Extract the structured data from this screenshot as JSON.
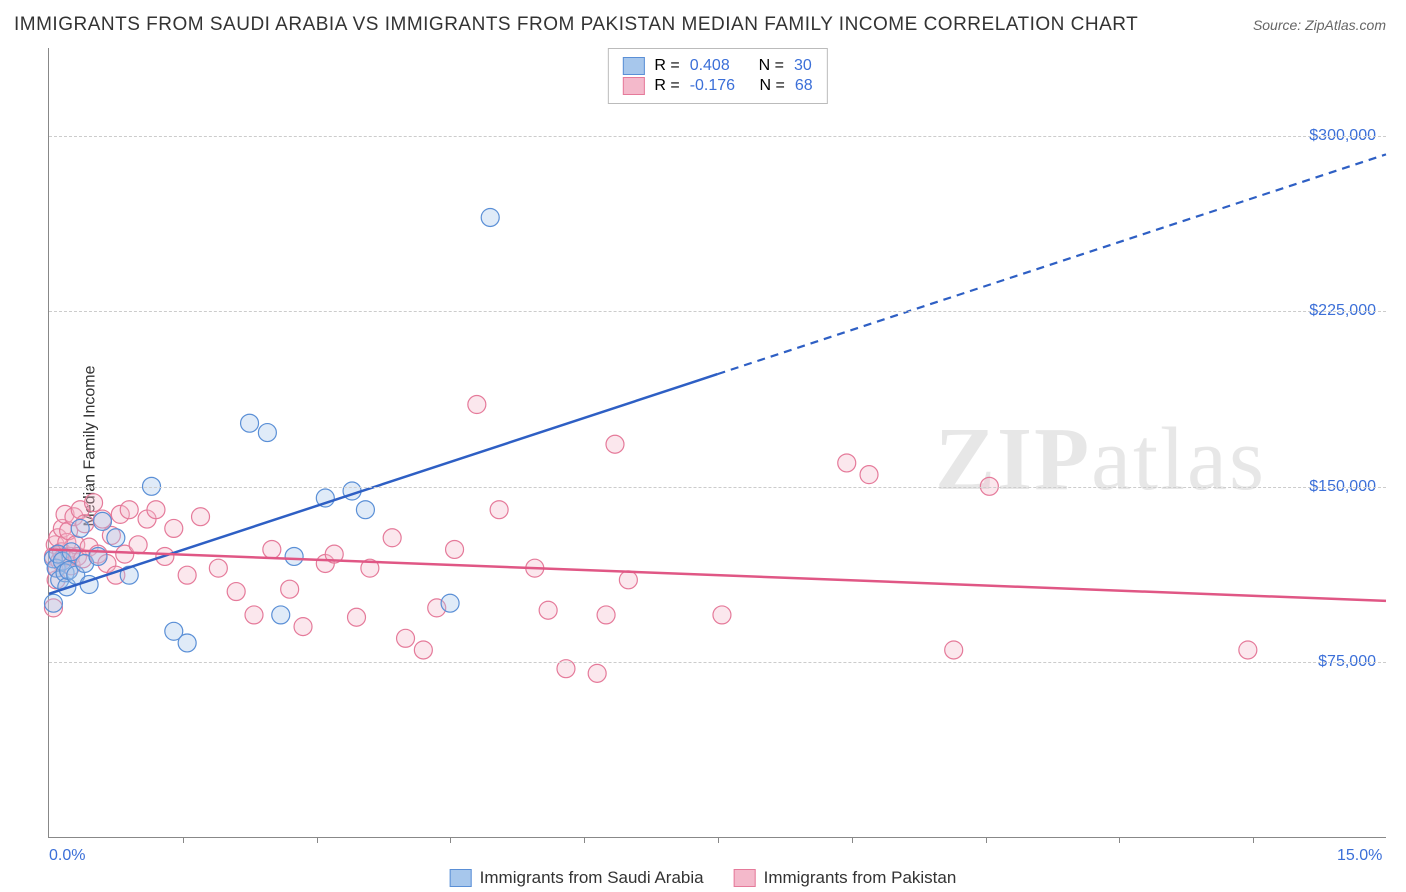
{
  "title": "IMMIGRANTS FROM SAUDI ARABIA VS IMMIGRANTS FROM PAKISTAN MEDIAN FAMILY INCOME CORRELATION CHART",
  "source": "Source: ZipAtlas.com",
  "y_axis_label": "Median Family Income",
  "watermark_bold": "ZIP",
  "watermark_light": "atlas",
  "chart": {
    "type": "scatter-with-regression",
    "background_color": "#ffffff",
    "grid_color": "#cccccc",
    "axis_color": "#888888",
    "tick_label_color": "#3b6fd8",
    "text_color": "#333333",
    "xlim": [
      0.0,
      15.0
    ],
    "ylim": [
      0,
      337500
    ],
    "x_ticks_minor": [
      1.5,
      3.0,
      4.5,
      6.0,
      7.5,
      9.0,
      10.5,
      12.0,
      13.5
    ],
    "x_ticks_label": [
      {
        "v": 0.0,
        "label": "0.0%"
      },
      {
        "v": 15.0,
        "label": "15.0%"
      }
    ],
    "y_ticks": [
      {
        "v": 75000,
        "label": "$75,000"
      },
      {
        "v": 150000,
        "label": "$150,000"
      },
      {
        "v": 225000,
        "label": "$225,000"
      },
      {
        "v": 300000,
        "label": "$300,000"
      }
    ],
    "series": [
      {
        "id": "saudi",
        "label": "Immigrants from Saudi Arabia",
        "marker_stroke": "#5a8fd6",
        "marker_fill": "#a7c7ec",
        "marker_radius": 9,
        "R": "0.408",
        "N": "30",
        "trend": {
          "x1": 0.0,
          "y1": 104000,
          "x2": 7.5,
          "y2": 198000,
          "extend_x2": 15.0,
          "extend_y2": 292000,
          "color": "#2e5fc4"
        },
        "points": [
          [
            0.05,
            119000
          ],
          [
            0.08,
            115000
          ],
          [
            0.1,
            121000
          ],
          [
            0.12,
            110000
          ],
          [
            0.15,
            118000
          ],
          [
            0.18,
            113000
          ],
          [
            0.2,
            107000
          ],
          [
            0.22,
            114000
          ],
          [
            0.25,
            122000
          ],
          [
            0.3,
            112000
          ],
          [
            0.35,
            132000
          ],
          [
            0.4,
            117000
          ],
          [
            0.45,
            108000
          ],
          [
            0.55,
            120000
          ],
          [
            0.6,
            135000
          ],
          [
            0.75,
            128000
          ],
          [
            0.9,
            112000
          ],
          [
            1.15,
            150000
          ],
          [
            1.4,
            88000
          ],
          [
            1.55,
            83000
          ],
          [
            2.25,
            177000
          ],
          [
            2.45,
            173000
          ],
          [
            2.6,
            95000
          ],
          [
            2.75,
            120000
          ],
          [
            3.1,
            145000
          ],
          [
            3.4,
            148000
          ],
          [
            3.55,
            140000
          ],
          [
            4.5,
            100000
          ],
          [
            4.95,
            265000
          ],
          [
            0.05,
            100000
          ]
        ]
      },
      {
        "id": "pakistan",
        "label": "Immigrants from Pakistan",
        "marker_stroke": "#e57a9a",
        "marker_fill": "#f4b9cb",
        "marker_radius": 9,
        "R": "-0.176",
        "N": "68",
        "trend": {
          "x1": 0.0,
          "y1": 123000,
          "x2": 15.0,
          "y2": 101000,
          "color": "#e05785"
        },
        "points": [
          [
            0.05,
            120000
          ],
          [
            0.05,
            98000
          ],
          [
            0.07,
            125000
          ],
          [
            0.08,
            110000
          ],
          [
            0.09,
            115000
          ],
          [
            0.1,
            128000
          ],
          [
            0.12,
            118000
          ],
          [
            0.14,
            122000
          ],
          [
            0.15,
            132000
          ],
          [
            0.17,
            120000
          ],
          [
            0.18,
            138000
          ],
          [
            0.2,
            126000
          ],
          [
            0.22,
            131000
          ],
          [
            0.24,
            120000
          ],
          [
            0.25,
            116000
          ],
          [
            0.28,
            137000
          ],
          [
            0.3,
            125000
          ],
          [
            0.32,
            120000
          ],
          [
            0.35,
            140000
          ],
          [
            0.38,
            119000
          ],
          [
            0.4,
            134000
          ],
          [
            0.45,
            124000
          ],
          [
            0.5,
            143000
          ],
          [
            0.55,
            121000
          ],
          [
            0.6,
            136000
          ],
          [
            0.65,
            117000
          ],
          [
            0.7,
            129000
          ],
          [
            0.75,
            112000
          ],
          [
            0.8,
            138000
          ],
          [
            0.85,
            121000
          ],
          [
            0.9,
            140000
          ],
          [
            1.0,
            125000
          ],
          [
            1.1,
            136000
          ],
          [
            1.2,
            140000
          ],
          [
            1.3,
            120000
          ],
          [
            1.4,
            132000
          ],
          [
            1.55,
            112000
          ],
          [
            1.7,
            137000
          ],
          [
            1.9,
            115000
          ],
          [
            2.1,
            105000
          ],
          [
            2.3,
            95000
          ],
          [
            2.5,
            123000
          ],
          [
            2.7,
            106000
          ],
          [
            2.85,
            90000
          ],
          [
            3.1,
            117000
          ],
          [
            3.2,
            121000
          ],
          [
            3.45,
            94000
          ],
          [
            3.6,
            115000
          ],
          [
            3.85,
            128000
          ],
          [
            4.0,
            85000
          ],
          [
            4.2,
            80000
          ],
          [
            4.35,
            98000
          ],
          [
            4.55,
            123000
          ],
          [
            4.8,
            185000
          ],
          [
            5.05,
            140000
          ],
          [
            5.45,
            115000
          ],
          [
            5.6,
            97000
          ],
          [
            5.8,
            72000
          ],
          [
            6.15,
            70000
          ],
          [
            6.25,
            95000
          ],
          [
            6.35,
            168000
          ],
          [
            6.5,
            110000
          ],
          [
            7.55,
            95000
          ],
          [
            8.95,
            160000
          ],
          [
            9.2,
            155000
          ],
          [
            10.15,
            80000
          ],
          [
            10.55,
            150000
          ],
          [
            13.45,
            80000
          ]
        ]
      }
    ]
  },
  "legend_top_prefix_R": "R =",
  "legend_top_prefix_N": "N ="
}
